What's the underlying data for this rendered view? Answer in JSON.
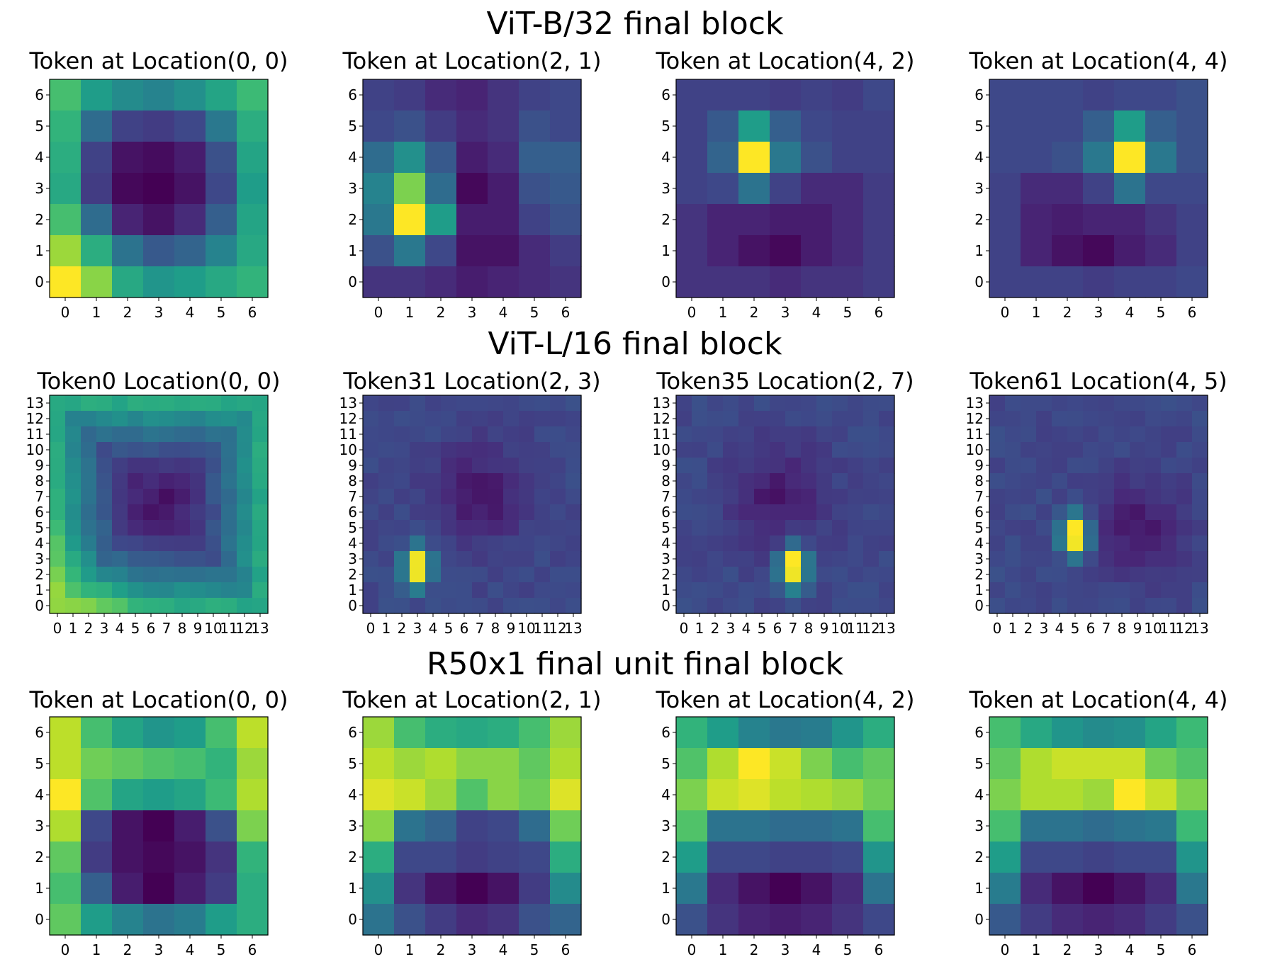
{
  "colormap": [
    "#440154",
    "#482878",
    "#3e4989",
    "#31688e",
    "#26828e",
    "#1f9e89",
    "#35b779",
    "#6ece58",
    "#b5de2b",
    "#fde725"
  ],
  "rows": [
    {
      "title": "ViT-B/32 final block"
    },
    {
      "title": "ViT-L/16 final block"
    },
    {
      "title": "R50x1 final unit final block"
    }
  ],
  "chart_data": [
    {
      "type": "heatmap",
      "section": "ViT-B/32 final block",
      "title": "Token at Location(0, 0)",
      "grid_size": 7,
      "values_rows_top_to_bottom": [
        [
          0.7,
          0.55,
          0.48,
          0.45,
          0.5,
          0.58,
          0.68
        ],
        [
          0.65,
          0.35,
          0.2,
          0.18,
          0.22,
          0.4,
          0.62
        ],
        [
          0.62,
          0.2,
          0.05,
          0.03,
          0.08,
          0.25,
          0.58
        ],
        [
          0.6,
          0.18,
          0.02,
          0.0,
          0.05,
          0.22,
          0.55
        ],
        [
          0.7,
          0.35,
          0.1,
          0.05,
          0.12,
          0.3,
          0.58
        ],
        [
          0.85,
          0.62,
          0.38,
          0.28,
          0.32,
          0.45,
          0.6
        ],
        [
          1.0,
          0.82,
          0.6,
          0.52,
          0.55,
          0.6,
          0.65
        ]
      ]
    },
    {
      "type": "heatmap",
      "section": "ViT-B/32 final block",
      "title": "Token at Location(2, 1)",
      "grid_size": 7,
      "values_rows_top_to_bottom": [
        [
          0.2,
          0.18,
          0.12,
          0.1,
          0.15,
          0.2,
          0.22
        ],
        [
          0.22,
          0.25,
          0.18,
          0.12,
          0.15,
          0.25,
          0.22
        ],
        [
          0.35,
          0.5,
          0.28,
          0.08,
          0.12,
          0.3,
          0.3
        ],
        [
          0.45,
          0.8,
          0.35,
          0.02,
          0.08,
          0.25,
          0.28
        ],
        [
          0.4,
          1.0,
          0.55,
          0.08,
          0.08,
          0.2,
          0.25
        ],
        [
          0.25,
          0.4,
          0.22,
          0.05,
          0.05,
          0.12,
          0.18
        ],
        [
          0.15,
          0.15,
          0.12,
          0.08,
          0.1,
          0.12,
          0.15
        ]
      ]
    },
    {
      "type": "heatmap",
      "section": "ViT-B/32 final block",
      "title": "Token at Location(4, 2)",
      "grid_size": 7,
      "values_rows_top_to_bottom": [
        [
          0.2,
          0.2,
          0.2,
          0.18,
          0.2,
          0.18,
          0.22
        ],
        [
          0.2,
          0.28,
          0.55,
          0.3,
          0.22,
          0.2,
          0.2
        ],
        [
          0.2,
          0.32,
          1.0,
          0.4,
          0.25,
          0.2,
          0.2
        ],
        [
          0.2,
          0.22,
          0.38,
          0.2,
          0.12,
          0.12,
          0.18
        ],
        [
          0.15,
          0.1,
          0.1,
          0.08,
          0.08,
          0.12,
          0.18
        ],
        [
          0.15,
          0.1,
          0.05,
          0.02,
          0.08,
          0.12,
          0.18
        ],
        [
          0.15,
          0.15,
          0.15,
          0.12,
          0.15,
          0.15,
          0.18
        ]
      ]
    },
    {
      "type": "heatmap",
      "section": "ViT-B/32 final block",
      "title": "Token at Location(4, 4)",
      "grid_size": 7,
      "values_rows_top_to_bottom": [
        [
          0.22,
          0.22,
          0.22,
          0.2,
          0.22,
          0.22,
          0.25
        ],
        [
          0.22,
          0.22,
          0.22,
          0.3,
          0.55,
          0.3,
          0.25
        ],
        [
          0.22,
          0.22,
          0.25,
          0.4,
          1.0,
          0.4,
          0.25
        ],
        [
          0.2,
          0.12,
          0.12,
          0.2,
          0.38,
          0.22,
          0.22
        ],
        [
          0.2,
          0.1,
          0.08,
          0.1,
          0.1,
          0.15,
          0.2
        ],
        [
          0.2,
          0.1,
          0.05,
          0.02,
          0.08,
          0.12,
          0.2
        ],
        [
          0.2,
          0.2,
          0.2,
          0.18,
          0.2,
          0.2,
          0.22
        ]
      ]
    },
    {
      "type": "heatmap",
      "section": "ViT-L/16 final block",
      "title": "Token0 Location(0, 0)",
      "grid_size": 14,
      "pattern": "edge",
      "seed": 1
    },
    {
      "type": "heatmap",
      "section": "ViT-L/16 final block",
      "title": "Token31 Location(2, 3)",
      "grid_size": 14,
      "pattern": "peak",
      "peak": [
        3,
        2.5
      ],
      "dark": [
        7,
        7
      ],
      "seed": 2
    },
    {
      "type": "heatmap",
      "section": "ViT-L/16 final block",
      "title": "Token35 Location(2, 7)",
      "grid_size": 14,
      "pattern": "peak",
      "peak": [
        7,
        2.5
      ],
      "dark": [
        6,
        7
      ],
      "seed": 3
    },
    {
      "type": "heatmap",
      "section": "ViT-L/16 final block",
      "title": "Token61 Location(4, 5)",
      "grid_size": 14,
      "pattern": "peak",
      "peak": [
        5,
        4.5
      ],
      "dark": [
        9,
        5
      ],
      "seed": 4
    },
    {
      "type": "heatmap",
      "section": "R50x1 final unit final block",
      "title": "Token at Location(0, 0)",
      "grid_size": 7,
      "values_rows_top_to_bottom": [
        [
          0.9,
          0.7,
          0.58,
          0.52,
          0.55,
          0.7,
          0.9
        ],
        [
          0.9,
          0.78,
          0.75,
          0.72,
          0.7,
          0.65,
          0.85
        ],
        [
          1.0,
          0.72,
          0.58,
          0.55,
          0.58,
          0.68,
          0.88
        ],
        [
          0.88,
          0.22,
          0.05,
          0.0,
          0.08,
          0.25,
          0.8
        ],
        [
          0.75,
          0.18,
          0.05,
          0.02,
          0.05,
          0.15,
          0.65
        ],
        [
          0.7,
          0.3,
          0.08,
          0.0,
          0.08,
          0.18,
          0.62
        ],
        [
          0.75,
          0.55,
          0.45,
          0.38,
          0.42,
          0.55,
          0.62
        ]
      ]
    },
    {
      "type": "heatmap",
      "section": "R50x1 final unit final block",
      "title": "Token at Location(2, 1)",
      "grid_size": 7,
      "values_rows_top_to_bottom": [
        [
          0.85,
          0.7,
          0.62,
          0.6,
          0.62,
          0.7,
          0.85
        ],
        [
          0.9,
          0.85,
          0.88,
          0.82,
          0.82,
          0.75,
          0.88
        ],
        [
          0.95,
          0.92,
          0.85,
          0.72,
          0.82,
          0.78,
          0.95
        ],
        [
          0.82,
          0.38,
          0.32,
          0.2,
          0.22,
          0.35,
          0.78
        ],
        [
          0.62,
          0.22,
          0.22,
          0.18,
          0.2,
          0.22,
          0.62
        ],
        [
          0.5,
          0.15,
          0.05,
          0.0,
          0.05,
          0.18,
          0.48
        ],
        [
          0.38,
          0.25,
          0.18,
          0.12,
          0.15,
          0.25,
          0.32
        ]
      ]
    },
    {
      "type": "heatmap",
      "section": "R50x1 final unit final block",
      "title": "Token at Location(4, 2)",
      "grid_size": 7,
      "values_rows_top_to_bottom": [
        [
          0.65,
          0.55,
          0.45,
          0.4,
          0.42,
          0.52,
          0.62
        ],
        [
          0.72,
          0.88,
          1.0,
          0.92,
          0.8,
          0.7,
          0.75
        ],
        [
          0.8,
          0.92,
          0.95,
          0.9,
          0.88,
          0.85,
          0.78
        ],
        [
          0.72,
          0.38,
          0.38,
          0.35,
          0.35,
          0.38,
          0.7
        ],
        [
          0.55,
          0.22,
          0.22,
          0.2,
          0.2,
          0.22,
          0.52
        ],
        [
          0.4,
          0.12,
          0.05,
          0.0,
          0.05,
          0.12,
          0.38
        ],
        [
          0.25,
          0.15,
          0.1,
          0.08,
          0.1,
          0.15,
          0.22
        ]
      ]
    },
    {
      "type": "heatmap",
      "section": "R50x1 final unit final block",
      "title": "Token at Location(4, 4)",
      "grid_size": 7,
      "values_rows_top_to_bottom": [
        [
          0.7,
          0.6,
          0.52,
          0.48,
          0.5,
          0.58,
          0.68
        ],
        [
          0.75,
          0.88,
          0.92,
          0.92,
          0.92,
          0.78,
          0.72
        ],
        [
          0.8,
          0.88,
          0.88,
          0.85,
          1.0,
          0.92,
          0.8
        ],
        [
          0.7,
          0.38,
          0.38,
          0.35,
          0.38,
          0.4,
          0.68
        ],
        [
          0.55,
          0.22,
          0.22,
          0.2,
          0.22,
          0.22,
          0.52
        ],
        [
          0.42,
          0.12,
          0.05,
          0.0,
          0.05,
          0.12,
          0.4
        ],
        [
          0.28,
          0.18,
          0.12,
          0.1,
          0.12,
          0.18,
          0.25
        ]
      ]
    }
  ]
}
